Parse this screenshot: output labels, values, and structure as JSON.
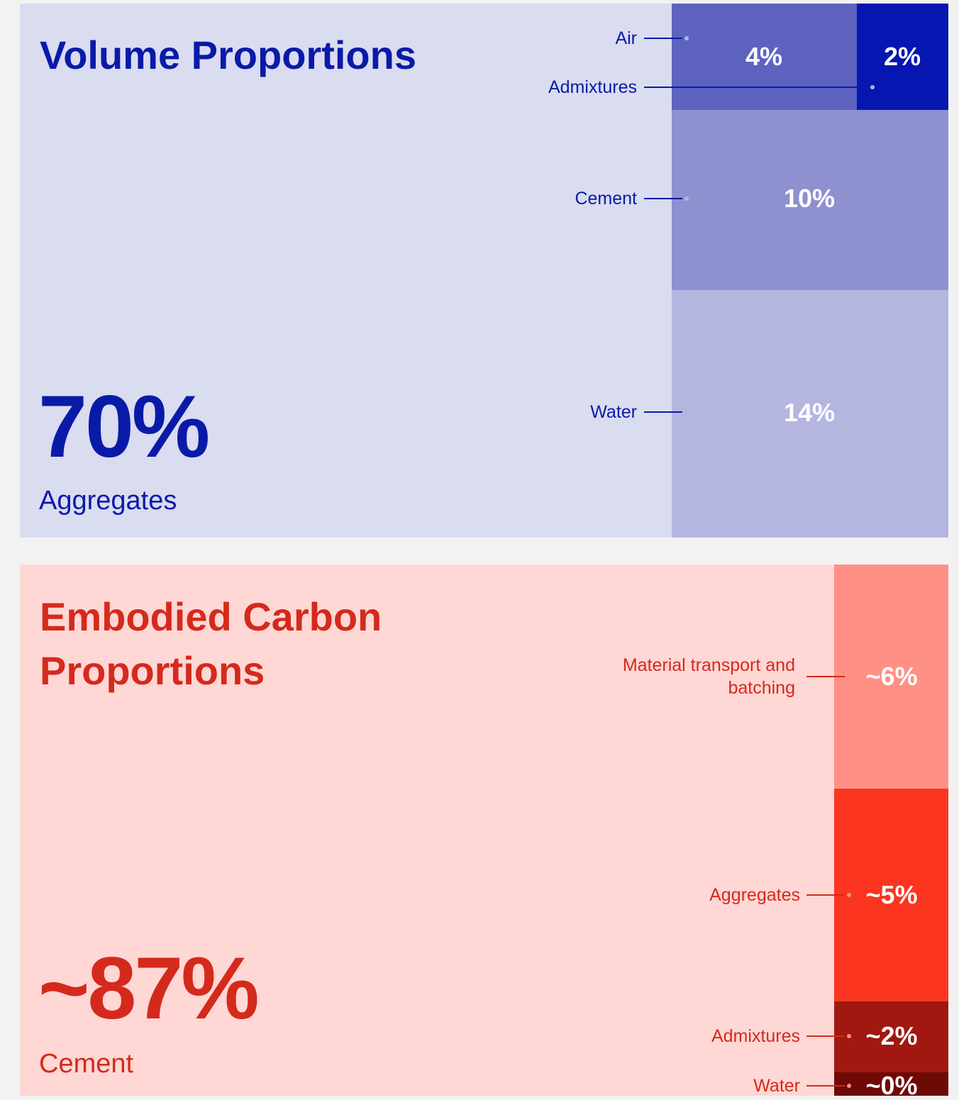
{
  "chart_data": [
    {
      "type": "treemap",
      "title": "Volume Proportions",
      "categories": [
        "Aggregates",
        "Water",
        "Cement",
        "Air",
        "Admixtures"
      ],
      "values": [
        70,
        14,
        10,
        4,
        2
      ],
      "value_labels": [
        "70%",
        "14%",
        "10%",
        "4%",
        "2%"
      ],
      "colors": [
        "#dadcf0",
        "#b4b6e0",
        "#8f90d0",
        "#5d63bf",
        "#0616b0"
      ],
      "background": "#dadcf0",
      "text_color": "#0a1aa8"
    },
    {
      "type": "treemap",
      "title": "Embodied Carbon Proportions",
      "categories": [
        "Cement",
        "Material transport and batching",
        "Aggregates",
        "Admixtures",
        "Water"
      ],
      "values": [
        87,
        6,
        5,
        2,
        0
      ],
      "value_labels": [
        "~87%",
        "~6%",
        "~5%",
        "~2%",
        "~0%"
      ],
      "colors": [
        "#ffd7d5",
        "#ff9085",
        "#fc3520",
        "#a0180f",
        "#6e0a05"
      ],
      "background": "#ffd7d5",
      "text_color": "#d42a1c"
    }
  ]
}
